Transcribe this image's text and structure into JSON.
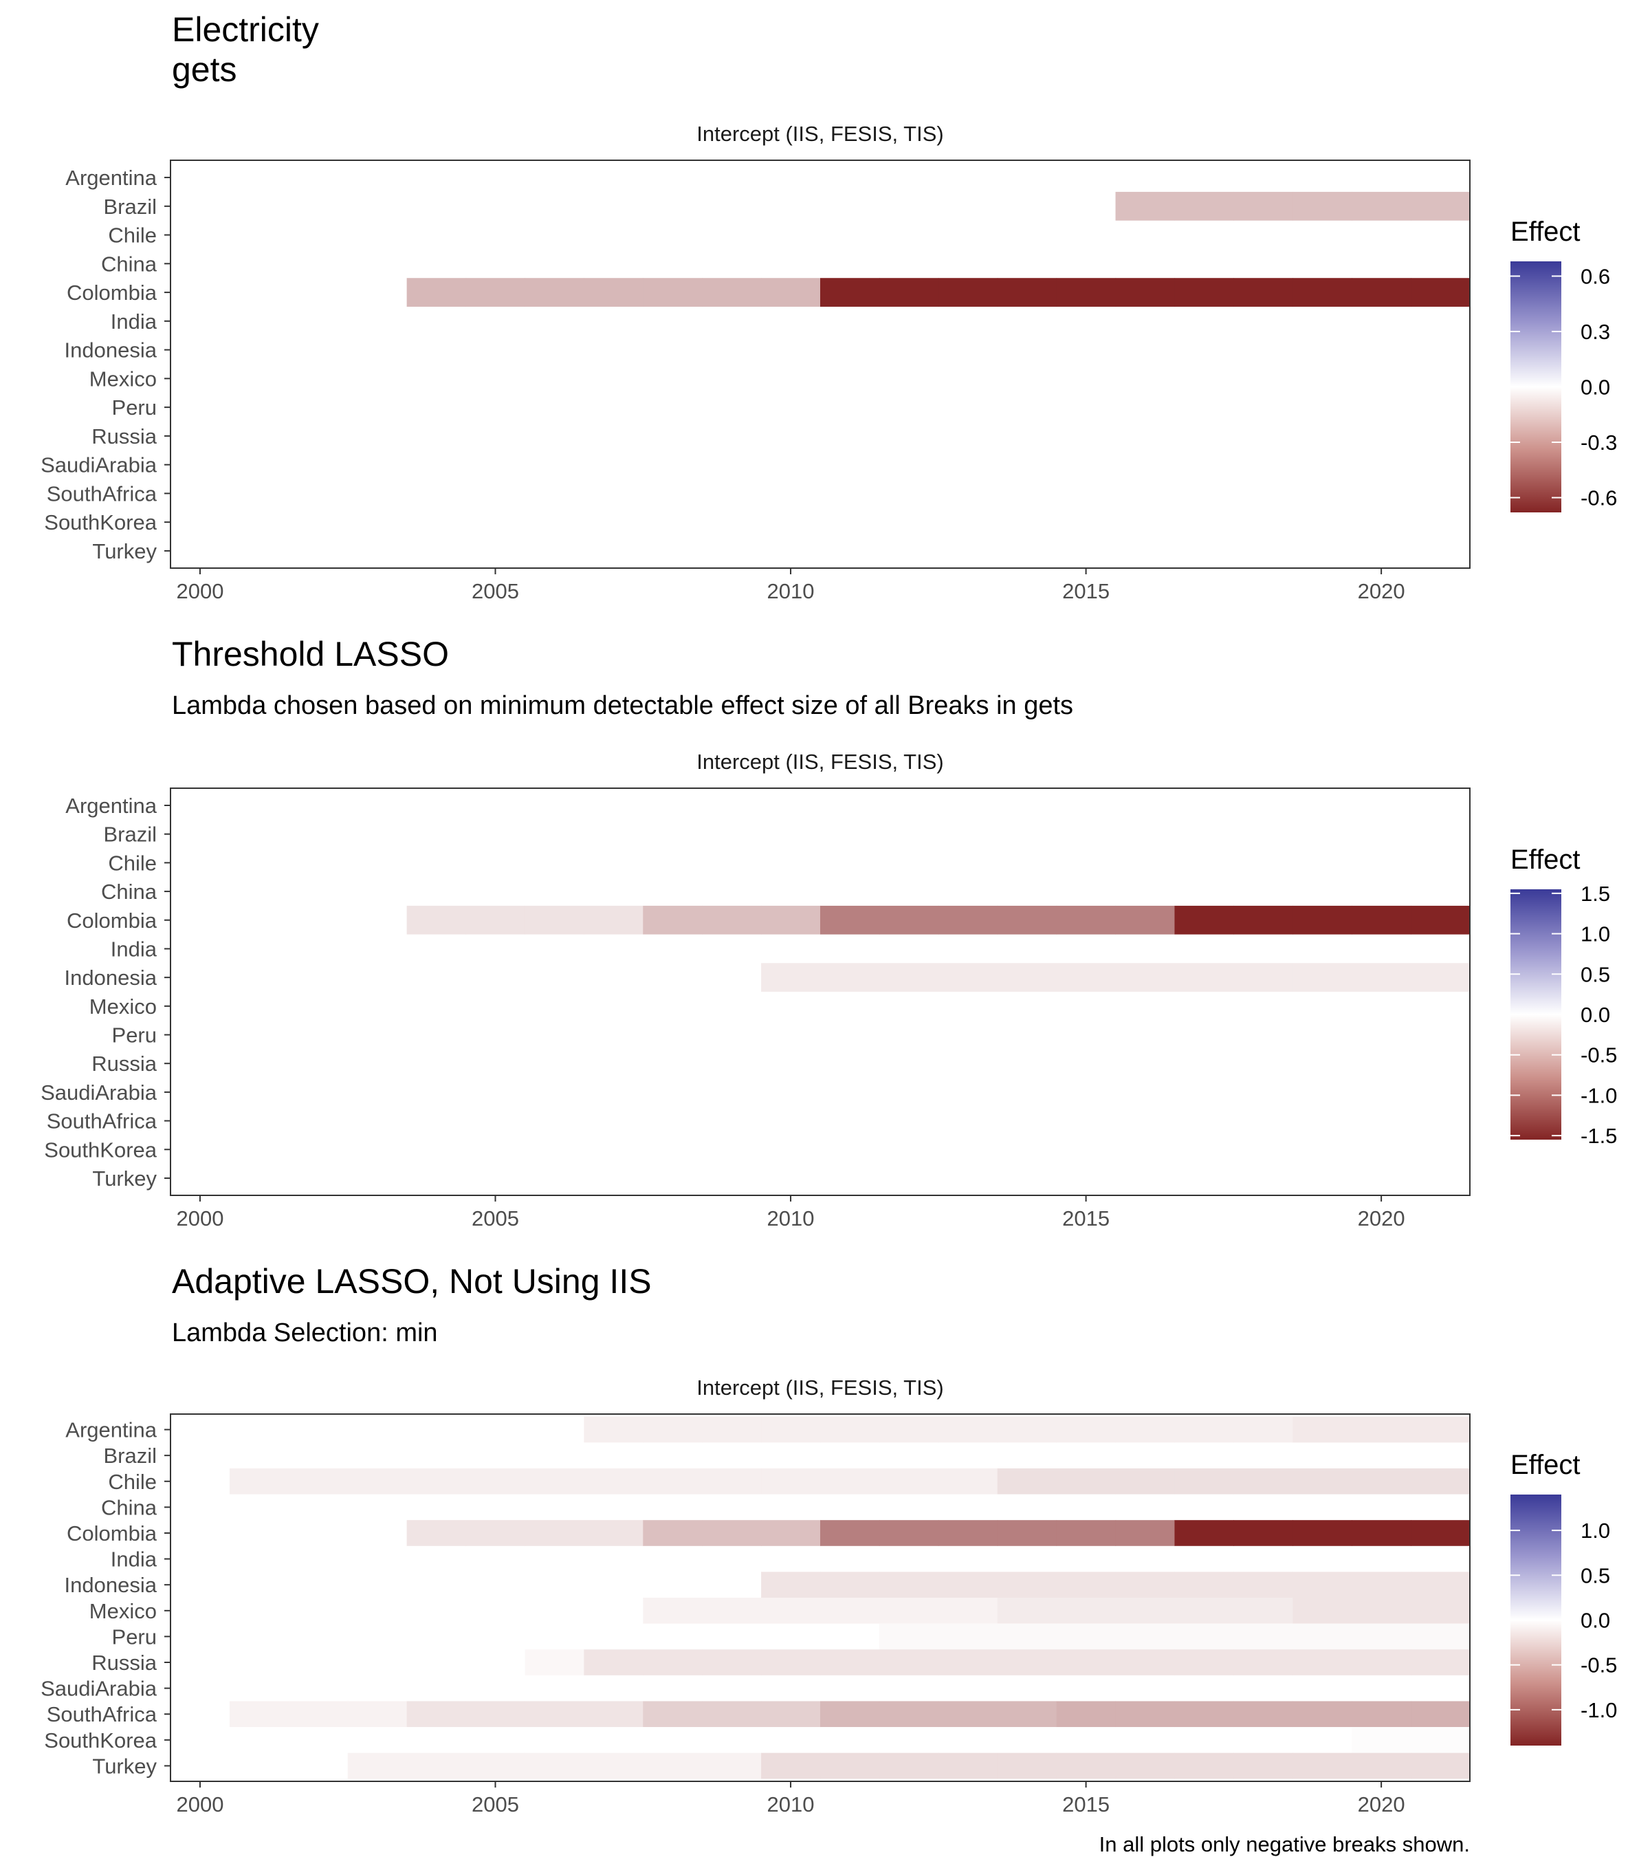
{
  "caption": "In all plots only negative breaks shown.",
  "colors": {
    "neg": "#832424",
    "mid": "#ffffff",
    "pos": "#3a3a98"
  },
  "chart_data": [
    {
      "type": "heatmap",
      "title": "Electricity\ngets",
      "subtitle": "",
      "strip": "Intercept (IIS, FESIS, TIS)",
      "x_ticks": [
        2000,
        2005,
        2010,
        2015,
        2020
      ],
      "xlim": [
        1999.5,
        2021.5
      ],
      "countries": [
        "Argentina",
        "Brazil",
        "Chile",
        "China",
        "Colombia",
        "India",
        "Indonesia",
        "Mexico",
        "Peru",
        "Russia",
        "SaudiArabia",
        "SouthAfrica",
        "SouthKorea",
        "Turkey"
      ],
      "legend": {
        "title": "Effect",
        "limits": [
          -0.68,
          0.68
        ],
        "ticks": [
          0.6,
          0.3,
          0.0,
          -0.3,
          -0.6
        ],
        "tick_labels": [
          "0.6",
          "0.3",
          "0.0",
          "-0.3",
          "-0.6"
        ]
      },
      "segments": [
        {
          "country": "Brazil",
          "start": 2016,
          "end": 2021,
          "effect": -0.2
        },
        {
          "country": "Colombia",
          "start": 2004,
          "end": 2010,
          "effect": -0.22
        },
        {
          "country": "Colombia",
          "start": 2011,
          "end": 2021,
          "effect": -0.68
        }
      ]
    },
    {
      "type": "heatmap",
      "title": "Threshold LASSO",
      "subtitle": "Lambda chosen based on minimum detectable effect size of all Breaks in gets",
      "strip": "Intercept (IIS, FESIS, TIS)",
      "x_ticks": [
        2000,
        2005,
        2010,
        2015,
        2020
      ],
      "xlim": [
        1999.5,
        2021.5
      ],
      "countries": [
        "Argentina",
        "Brazil",
        "Chile",
        "China",
        "Colombia",
        "India",
        "Indonesia",
        "Mexico",
        "Peru",
        "Russia",
        "SaudiArabia",
        "SouthAfrica",
        "SouthKorea",
        "Turkey"
      ],
      "legend": {
        "title": "Effect",
        "limits": [
          -1.55,
          1.55
        ],
        "ticks": [
          1.5,
          1.0,
          0.5,
          0.0,
          -0.5,
          -1.0,
          -1.5
        ],
        "tick_labels": [
          "1.5",
          "1.0",
          "0.5",
          "0.0",
          "-0.5",
          "-1.0",
          "-1.5"
        ]
      },
      "segments": [
        {
          "country": "Colombia",
          "start": 2004,
          "end": 2007,
          "effect": -0.2
        },
        {
          "country": "Colombia",
          "start": 2008,
          "end": 2010,
          "effect": -0.45
        },
        {
          "country": "Colombia",
          "start": 2011,
          "end": 2016,
          "effect": -0.9
        },
        {
          "country": "Colombia",
          "start": 2017,
          "end": 2021,
          "effect": -1.55
        },
        {
          "country": "Indonesia",
          "start": 2010,
          "end": 2021,
          "effect": -0.15
        }
      ]
    },
    {
      "type": "heatmap",
      "title": "Adaptive LASSO, Not Using IIS",
      "subtitle": "Lambda Selection: min",
      "strip": "Intercept (IIS, FESIS, TIS)",
      "x_ticks": [
        2000,
        2005,
        2010,
        2015,
        2020
      ],
      "xlim": [
        1999.5,
        2021.5
      ],
      "countries": [
        "Argentina",
        "Brazil",
        "Chile",
        "China",
        "Colombia",
        "India",
        "Indonesia",
        "Mexico",
        "Peru",
        "Russia",
        "SaudiArabia",
        "SouthAfrica",
        "SouthKorea",
        "Turkey"
      ],
      "legend": {
        "title": "Effect",
        "limits": [
          -1.4,
          1.4
        ],
        "ticks": [
          1.0,
          0.5,
          0.0,
          -0.5,
          -1.0
        ],
        "tick_labels": [
          "1.0",
          "0.5",
          "0.0",
          "-0.5",
          "-1.0"
        ]
      },
      "segments": [
        {
          "country": "Argentina",
          "start": 2007,
          "end": 2018,
          "effect": -0.1
        },
        {
          "country": "Argentina",
          "start": 2019,
          "end": 2021,
          "effect": -0.14
        },
        {
          "country": "Chile",
          "start": 2001,
          "end": 2013,
          "effect": -0.1
        },
        {
          "country": "Chile",
          "start": 2014,
          "end": 2021,
          "effect": -0.2
        },
        {
          "country": "Colombia",
          "start": 2004,
          "end": 2007,
          "effect": -0.17
        },
        {
          "country": "Colombia",
          "start": 2008,
          "end": 2010,
          "effect": -0.4
        },
        {
          "country": "Colombia",
          "start": 2011,
          "end": 2016,
          "effect": -0.82
        },
        {
          "country": "Colombia",
          "start": 2017,
          "end": 2021,
          "effect": -1.4
        },
        {
          "country": "Indonesia",
          "start": 2010,
          "end": 2021,
          "effect": -0.17
        },
        {
          "country": "Mexico",
          "start": 2008,
          "end": 2013,
          "effect": -0.08
        },
        {
          "country": "Mexico",
          "start": 2014,
          "end": 2018,
          "effect": -0.13
        },
        {
          "country": "Mexico",
          "start": 2019,
          "end": 2021,
          "effect": -0.17
        },
        {
          "country": "Peru",
          "start": 2012,
          "end": 2021,
          "effect": -0.04
        },
        {
          "country": "Russia",
          "start": 2006,
          "end": 2006,
          "effect": -0.05
        },
        {
          "country": "Russia",
          "start": 2007,
          "end": 2021,
          "effect": -0.17
        },
        {
          "country": "SouthAfrica",
          "start": 2001,
          "end": 2003,
          "effect": -0.08
        },
        {
          "country": "SouthAfrica",
          "start": 2004,
          "end": 2007,
          "effect": -0.17
        },
        {
          "country": "SouthAfrica",
          "start": 2008,
          "end": 2010,
          "effect": -0.3
        },
        {
          "country": "SouthAfrica",
          "start": 2011,
          "end": 2014,
          "effect": -0.45
        },
        {
          "country": "SouthAfrica",
          "start": 2015,
          "end": 2021,
          "effect": -0.5
        },
        {
          "country": "SouthKorea",
          "start": 2020,
          "end": 2021,
          "effect": -0.02
        },
        {
          "country": "Turkey",
          "start": 2003,
          "end": 2009,
          "effect": -0.08
        },
        {
          "country": "Turkey",
          "start": 2010,
          "end": 2021,
          "effect": -0.22
        }
      ]
    }
  ]
}
